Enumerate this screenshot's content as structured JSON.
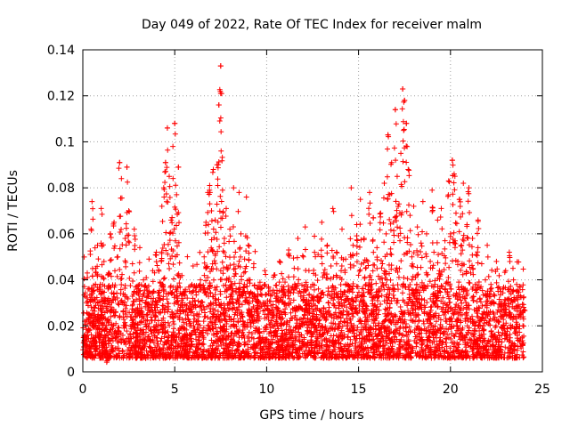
{
  "chart_data": {
    "type": "scatter",
    "title": "Day 049 of 2022, Rate Of TEC Index for receiver malm",
    "xlabel": "GPS time / hours",
    "ylabel": "ROTI / TECUs",
    "xlim": [
      0,
      25
    ],
    "ylim": [
      0,
      0.14
    ],
    "xticks": [
      0,
      5,
      10,
      15,
      20,
      25
    ],
    "yticks": [
      0,
      0.02,
      0.04,
      0.06,
      0.08,
      0.1,
      0.12,
      0.14
    ],
    "x_tick_labels": [
      "0",
      "5",
      "10",
      "15",
      "20",
      "25"
    ],
    "y_tick_labels": [
      "0",
      "0.02",
      "0.04",
      "0.06",
      "0.08",
      "0.1",
      "0.12",
      "0.14"
    ],
    "grid": true,
    "marker": "+",
    "color": "#ff0000",
    "data_range_x": [
      0,
      24
    ],
    "peaks": [
      {
        "x": 7.5,
        "y": 0.133
      },
      {
        "x": 7.5,
        "y": 0.121
      },
      {
        "x": 7.4,
        "y": 0.116
      },
      {
        "x": 17.4,
        "y": 0.123
      },
      {
        "x": 17.5,
        "y": 0.118
      },
      {
        "x": 17.0,
        "y": 0.114
      },
      {
        "x": 16.6,
        "y": 0.103
      },
      {
        "x": 5.0,
        "y": 0.108
      },
      {
        "x": 4.6,
        "y": 0.106
      },
      {
        "x": 17.6,
        "y": 0.108
      },
      {
        "x": 20.1,
        "y": 0.092
      },
      {
        "x": 2.0,
        "y": 0.091
      },
      {
        "x": 2.4,
        "y": 0.089
      },
      {
        "x": 5.2,
        "y": 0.089
      },
      {
        "x": 4.5,
        "y": 0.091
      }
    ],
    "series": [
      {
        "points": [
          [
            0.05,
            0.015
          ],
          [
            0.1,
            0.022
          ],
          [
            0.15,
            0.012
          ],
          [
            0.2,
            0.03
          ],
          [
            0.25,
            0.041
          ],
          [
            0.3,
            0.018
          ],
          [
            0.35,
            0.025
          ],
          [
            0.4,
            0.01
          ],
          [
            0.45,
            0.062
          ],
          [
            0.5,
            0.074
          ],
          [
            0.55,
            0.035
          ],
          [
            0.6,
            0.02
          ],
          [
            0.65,
            0.028
          ],
          [
            0.7,
            0.045
          ],
          [
            0.75,
            0.013
          ],
          [
            0.8,
            0.055
          ],
          [
            0.85,
            0.023
          ],
          [
            0.9,
            0.017
          ],
          [
            0.95,
            0.038
          ],
          [
            1.0,
            0.071
          ],
          [
            1.05,
            0.026
          ],
          [
            1.1,
            0.014
          ],
          [
            1.15,
            0.048
          ],
          [
            1.2,
            0.032
          ],
          [
            1.25,
            0.019
          ],
          [
            1.3,
            0.008
          ],
          [
            1.4,
            0.043
          ],
          [
            1.5,
            0.06
          ],
          [
            1.6,
            0.027
          ],
          [
            1.7,
            0.065
          ],
          [
            1.8,
            0.021
          ],
          [
            1.9,
            0.05
          ],
          [
            2.0,
            0.091
          ],
          [
            2.1,
            0.084
          ],
          [
            2.2,
            0.034
          ],
          [
            2.3,
            0.058
          ],
          [
            2.4,
            0.089
          ],
          [
            2.5,
            0.07
          ],
          [
            2.6,
            0.024
          ],
          [
            2.7,
            0.047
          ],
          [
            2.8,
            0.062
          ],
          [
            2.9,
            0.015
          ],
          [
            3.0,
            0.036
          ],
          [
            3.1,
            0.054
          ],
          [
            3.2,
            0.022
          ],
          [
            3.3,
            0.04
          ],
          [
            3.4,
            0.012
          ],
          [
            3.5,
            0.033
          ],
          [
            3.6,
            0.049
          ],
          [
            3.7,
            0.018
          ],
          [
            3.8,
            0.044
          ],
          [
            3.9,
            0.028
          ],
          [
            4.0,
            0.052
          ],
          [
            4.1,
            0.02
          ],
          [
            4.2,
            0.039
          ],
          [
            4.3,
            0.072
          ],
          [
            4.4,
            0.08
          ],
          [
            4.5,
            0.091
          ],
          [
            4.6,
            0.106
          ],
          [
            4.7,
            0.085
          ],
          [
            4.8,
            0.066
          ],
          [
            4.9,
            0.098
          ],
          [
            5.0,
            0.108
          ],
          [
            5.1,
            0.077
          ],
          [
            5.2,
            0.089
          ],
          [
            5.3,
            0.041
          ],
          [
            5.4,
            0.029
          ],
          [
            5.5,
            0.015
          ],
          [
            5.6,
            0.026
          ],
          [
            5.7,
            0.01
          ],
          [
            5.8,
            0.035
          ],
          [
            5.9,
            0.02
          ],
          [
            6.0,
            0.046
          ],
          [
            6.1,
            0.031
          ],
          [
            6.2,
            0.012
          ],
          [
            6.3,
            0.024
          ],
          [
            6.4,
            0.04
          ],
          [
            6.5,
            0.018
          ],
          [
            6.6,
            0.05
          ],
          [
            6.7,
            0.065
          ],
          [
            6.8,
            0.078
          ],
          [
            6.9,
            0.081
          ],
          [
            7.0,
            0.07
          ],
          [
            7.1,
            0.088
          ],
          [
            7.2,
            0.066
          ],
          [
            7.3,
            0.09
          ],
          [
            7.4,
            0.116
          ],
          [
            7.5,
            0.133
          ],
          [
            7.55,
            0.121
          ],
          [
            7.6,
            0.079
          ],
          [
            7.7,
            0.058
          ],
          [
            7.8,
            0.071
          ],
          [
            7.9,
            0.045
          ],
          [
            8.0,
            0.062
          ],
          [
            8.1,
            0.038
          ],
          [
            8.2,
            0.08
          ],
          [
            8.3,
            0.052
          ],
          [
            8.4,
            0.027
          ],
          [
            8.5,
            0.078
          ],
          [
            8.6,
            0.06
          ],
          [
            8.7,
            0.033
          ],
          [
            8.8,
            0.049
          ],
          [
            8.9,
            0.076
          ],
          [
            9.0,
            0.055
          ],
          [
            9.1,
            0.04
          ],
          [
            9.2,
            0.025
          ],
          [
            9.3,
            0.047
          ],
          [
            9.4,
            0.018
          ],
          [
            9.5,
            0.036
          ],
          [
            9.6,
            0.023
          ],
          [
            9.7,
            0.014
          ],
          [
            9.8,
            0.03
          ],
          [
            9.9,
            0.044
          ],
          [
            10.0,
            0.02
          ],
          [
            10.1,
            0.034
          ],
          [
            10.2,
            0.012
          ],
          [
            10.3,
            0.027
          ],
          [
            10.4,
            0.042
          ],
          [
            10.5,
            0.018
          ],
          [
            10.6,
            0.031
          ],
          [
            10.7,
            0.048
          ],
          [
            10.8,
            0.026
          ],
          [
            10.9,
            0.015
          ],
          [
            11.0,
            0.039
          ],
          [
            11.1,
            0.022
          ],
          [
            11.2,
            0.053
          ],
          [
            11.3,
            0.03
          ],
          [
            11.4,
            0.016
          ],
          [
            11.5,
            0.045
          ],
          [
            11.6,
            0.028
          ],
          [
            11.7,
            0.058
          ],
          [
            11.8,
            0.035
          ],
          [
            11.9,
            0.021
          ],
          [
            12.0,
            0.05
          ],
          [
            12.1,
            0.063
          ],
          [
            12.2,
            0.029
          ],
          [
            12.3,
            0.044
          ],
          [
            12.4,
            0.017
          ],
          [
            12.5,
            0.038
          ],
          [
            12.6,
            0.059
          ],
          [
            12.7,
            0.024
          ],
          [
            12.8,
            0.051
          ],
          [
            12.9,
            0.032
          ],
          [
            13.0,
            0.065
          ],
          [
            13.1,
            0.043
          ],
          [
            13.2,
            0.019
          ],
          [
            13.3,
            0.055
          ],
          [
            13.4,
            0.028
          ],
          [
            13.5,
            0.046
          ],
          [
            13.6,
            0.071
          ],
          [
            13.7,
            0.034
          ],
          [
            13.8,
            0.052
          ],
          [
            13.9,
            0.02
          ],
          [
            14.0,
            0.041
          ],
          [
            14.1,
            0.062
          ],
          [
            14.2,
            0.03
          ],
          [
            14.3,
            0.049
          ],
          [
            14.4,
            0.015
          ],
          [
            14.5,
            0.037
          ],
          [
            14.6,
            0.08
          ],
          [
            14.7,
            0.055
          ],
          [
            14.8,
            0.027
          ],
          [
            14.9,
            0.064
          ],
          [
            15.0,
            0.042
          ],
          [
            15.1,
            0.075
          ],
          [
            15.2,
            0.033
          ],
          [
            15.3,
            0.058
          ],
          [
            15.4,
            0.022
          ],
          [
            15.5,
            0.048
          ],
          [
            15.6,
            0.078
          ],
          [
            15.7,
            0.04
          ],
          [
            15.8,
            0.067
          ],
          [
            15.9,
            0.029
          ],
          [
            16.0,
            0.054
          ],
          [
            16.1,
            0.036
          ],
          [
            16.2,
            0.069
          ],
          [
            16.3,
            0.047
          ],
          [
            16.4,
            0.082
          ],
          [
            16.5,
            0.06
          ],
          [
            16.6,
            0.103
          ],
          [
            16.7,
            0.077
          ],
          [
            16.8,
            0.091
          ],
          [
            16.9,
            0.065
          ],
          [
            17.0,
            0.114
          ],
          [
            17.1,
            0.085
          ],
          [
            17.2,
            0.073
          ],
          [
            17.3,
            0.095
          ],
          [
            17.4,
            0.123
          ],
          [
            17.5,
            0.118
          ],
          [
            17.6,
            0.108
          ],
          [
            17.7,
            0.088
          ],
          [
            17.8,
            0.068
          ],
          [
            17.9,
            0.05
          ],
          [
            18.0,
            0.072
          ],
          [
            18.1,
            0.041
          ],
          [
            18.2,
            0.063
          ],
          [
            18.3,
            0.03
          ],
          [
            18.4,
            0.056
          ],
          [
            18.5,
            0.074
          ],
          [
            18.6,
            0.037
          ],
          [
            18.7,
            0.06
          ],
          [
            18.8,
            0.025
          ],
          [
            18.9,
            0.048
          ],
          [
            19.0,
            0.079
          ],
          [
            19.1,
            0.052
          ],
          [
            19.2,
            0.033
          ],
          [
            19.3,
            0.066
          ],
          [
            19.4,
            0.044
          ],
          [
            19.5,
            0.071
          ],
          [
            19.6,
            0.028
          ],
          [
            19.7,
            0.057
          ],
          [
            19.8,
            0.039
          ],
          [
            19.9,
            0.083
          ],
          [
            20.0,
            0.06
          ],
          [
            20.1,
            0.092
          ],
          [
            20.2,
            0.086
          ],
          [
            20.3,
            0.069
          ],
          [
            20.4,
            0.048
          ],
          [
            20.5,
            0.075
          ],
          [
            20.6,
            0.055
          ],
          [
            20.7,
            0.082
          ],
          [
            20.8,
            0.036
          ],
          [
            20.9,
            0.064
          ],
          [
            21.0,
            0.08
          ],
          [
            21.1,
            0.043
          ],
          [
            21.2,
            0.058
          ],
          [
            21.3,
            0.027
          ],
          [
            21.4,
            0.051
          ],
          [
            21.5,
            0.066
          ],
          [
            21.6,
            0.032
          ],
          [
            21.7,
            0.047
          ],
          [
            21.8,
            0.02
          ],
          [
            21.9,
            0.04
          ],
          [
            22.0,
            0.055
          ],
          [
            22.1,
            0.025
          ],
          [
            22.2,
            0.038
          ],
          [
            22.3,
            0.015
          ],
          [
            22.4,
            0.033
          ],
          [
            22.5,
            0.048
          ],
          [
            22.6,
            0.022
          ],
          [
            22.7,
            0.036
          ],
          [
            22.8,
            0.013
          ],
          [
            22.9,
            0.029
          ],
          [
            23.0,
            0.044
          ],
          [
            23.1,
            0.019
          ],
          [
            23.2,
            0.052
          ],
          [
            23.3,
            0.031
          ],
          [
            23.4,
            0.045
          ],
          [
            23.5,
            0.017
          ],
          [
            23.6,
            0.038
          ],
          [
            23.7,
            0.024
          ],
          [
            23.8,
            0.033
          ],
          [
            23.9,
            0.015
          ],
          [
            24.0,
            0.027
          ]
        ]
      }
    ]
  }
}
